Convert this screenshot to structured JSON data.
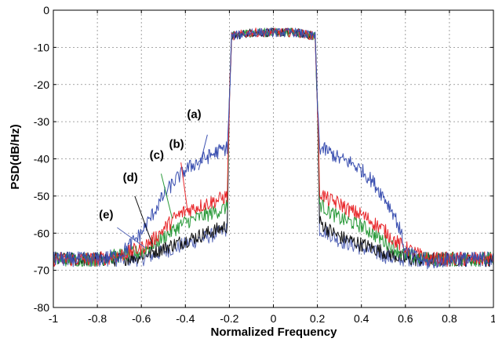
{
  "chart_data": {
    "type": "line",
    "title": "",
    "xlabel": "Normalized Frequency",
    "ylabel": "PSD(dB/Hz)",
    "xlim": [
      -1,
      1
    ],
    "ylim": [
      -80,
      0
    ],
    "grid": true,
    "xticks": [
      -1,
      -0.8,
      -0.6,
      -0.4,
      -0.2,
      0,
      0.2,
      0.4,
      0.6,
      0.8,
      1
    ],
    "yticks": [
      -80,
      -70,
      -60,
      -50,
      -40,
      -30,
      -20,
      -10,
      0
    ],
    "xtick_labels": [
      "-1",
      "-0.8",
      "-0.6",
      "-0.4",
      "-0.2",
      "0",
      "0.2",
      "0.4",
      "0.6",
      "0.8",
      "1"
    ],
    "ytick_labels": [
      "-80",
      "-70",
      "-60",
      "-50",
      "-40",
      "-30",
      "-20",
      "-10",
      "0"
    ],
    "series": [
      {
        "label": "(a)",
        "color": "#3a4fb0",
        "x": [
          -1,
          -0.8,
          -0.7,
          -0.6,
          -0.55,
          -0.5,
          -0.45,
          -0.4,
          -0.35,
          -0.3,
          -0.25,
          -0.21,
          -0.2,
          -0.19,
          -0.1,
          0,
          0.1,
          0.19,
          0.2,
          0.21,
          0.25,
          0.3,
          0.35,
          0.4,
          0.45,
          0.5,
          0.55,
          0.58,
          0.6,
          0.7,
          0.8,
          1
        ],
        "y": [
          -67,
          -67,
          -66,
          -60,
          -55,
          -50,
          -46,
          -43,
          -41,
          -39.5,
          -38,
          -37,
          -25,
          -7,
          -6,
          -6,
          -6,
          -7,
          -25,
          -37,
          -38,
          -40,
          -41,
          -43,
          -46,
          -50,
          -55,
          -60,
          -65,
          -68,
          -67,
          -67
        ]
      },
      {
        "label": "(b)",
        "color": "#e8282c",
        "x": [
          -1,
          -0.8,
          -0.7,
          -0.6,
          -0.55,
          -0.5,
          -0.45,
          -0.4,
          -0.35,
          -0.3,
          -0.25,
          -0.21,
          -0.2,
          -0.19,
          -0.1,
          0,
          0.1,
          0.19,
          0.2,
          0.21,
          0.25,
          0.3,
          0.35,
          0.4,
          0.45,
          0.5,
          0.55,
          0.6,
          0.7,
          0.8,
          1
        ],
        "y": [
          -67,
          -67,
          -66,
          -64,
          -62,
          -59,
          -56,
          -54,
          -53,
          -52,
          -51,
          -50,
          -25,
          -7,
          -6,
          -6,
          -6,
          -7,
          -25,
          -49,
          -51,
          -52,
          -54,
          -55,
          -57,
          -59,
          -62,
          -64,
          -67,
          -67,
          -67
        ]
      },
      {
        "label": "(c)",
        "color": "#2a9a3a",
        "x": [
          -1,
          -0.8,
          -0.7,
          -0.6,
          -0.55,
          -0.5,
          -0.45,
          -0.4,
          -0.35,
          -0.3,
          -0.25,
          -0.21,
          -0.2,
          -0.19,
          -0.1,
          0,
          0.1,
          0.19,
          0.2,
          0.21,
          0.25,
          0.3,
          0.35,
          0.4,
          0.45,
          0.5,
          0.55,
          0.6,
          0.7,
          0.8,
          1
        ],
        "y": [
          -67,
          -67,
          -66,
          -65,
          -63,
          -61,
          -59,
          -57,
          -56,
          -55,
          -54,
          -53,
          -25,
          -7,
          -6,
          -6,
          -6,
          -7,
          -25,
          -52,
          -54,
          -56,
          -57,
          -58,
          -60,
          -62,
          -64,
          -66,
          -67,
          -67,
          -67
        ]
      },
      {
        "label": "(d)",
        "color": "#111111",
        "x": [
          -1,
          -0.8,
          -0.7,
          -0.6,
          -0.55,
          -0.5,
          -0.45,
          -0.4,
          -0.35,
          -0.3,
          -0.25,
          -0.21,
          -0.2,
          -0.19,
          -0.1,
          0,
          0.1,
          0.19,
          0.2,
          0.21,
          0.25,
          0.3,
          0.35,
          0.4,
          0.45,
          0.5,
          0.55,
          0.6,
          0.7,
          0.8,
          1
        ],
        "y": [
          -67,
          -67,
          -67,
          -66,
          -65,
          -64,
          -63,
          -62,
          -61,
          -60,
          -59,
          -58,
          -25,
          -7,
          -6,
          -6,
          -6,
          -7,
          -25,
          -57,
          -59,
          -61,
          -62,
          -63,
          -64,
          -65,
          -66,
          -67,
          -67,
          -67,
          -67
        ]
      },
      {
        "label": "(e)",
        "color": "#5a6ab8",
        "x": [
          -1,
          -0.8,
          -0.7,
          -0.6,
          -0.55,
          -0.5,
          -0.45,
          -0.4,
          -0.35,
          -0.3,
          -0.25,
          -0.21,
          -0.2,
          -0.19,
          -0.1,
          0,
          0.1,
          0.19,
          0.2,
          0.21,
          0.25,
          0.3,
          0.35,
          0.4,
          0.45,
          0.5,
          0.55,
          0.6,
          0.7,
          0.8,
          1
        ],
        "y": [
          -67,
          -67,
          -67,
          -67,
          -66,
          -65,
          -64,
          -63,
          -62,
          -61,
          -60,
          -59,
          -25,
          -7,
          -6,
          -6,
          -6,
          -7,
          -25,
          -59,
          -60,
          -62,
          -63,
          -64,
          -65,
          -66,
          -67,
          -67,
          -67,
          -67,
          -67
        ]
      }
    ],
    "annotations": [
      {
        "text": "(a)",
        "x": -0.36,
        "y": -29,
        "tx": -0.3,
        "ty": -33.5,
        "px": -0.34,
        "py": -43
      },
      {
        "text": "(b)",
        "x": -0.44,
        "y": -37,
        "tx": -0.42,
        "ty": -41,
        "px": -0.39,
        "py": -54
      },
      {
        "text": "(c)",
        "x": -0.53,
        "y": -40,
        "tx": -0.51,
        "ty": -44,
        "px": -0.46,
        "py": -56
      },
      {
        "text": "(d)",
        "x": -0.65,
        "y": -46,
        "tx": -0.63,
        "ty": -50,
        "px": -0.55,
        "py": -63
      },
      {
        "text": "(e)",
        "x": -0.76,
        "y": -56,
        "tx": -0.71,
        "ty": -58.5,
        "px": -0.58,
        "py": -64
      }
    ]
  }
}
